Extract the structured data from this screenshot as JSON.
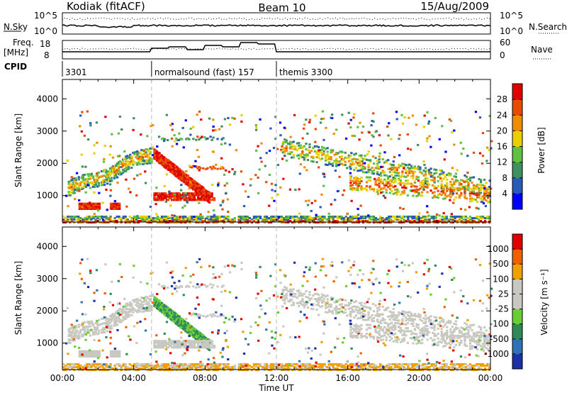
{
  "header": {
    "station": "Kodiak (fitACF)",
    "beam": "Beam 10",
    "date": "15/Aug/2009"
  },
  "params": {
    "nsky_label": "N.Sky",
    "nsearch_label": "N.Search",
    "freq_label_line1": "Freq.",
    "freq_label_line2": "[MHz]",
    "nave_label": "Nave",
    "cpid_label": "CPID",
    "noise_left_ticks": [
      "10^5",
      "10^0"
    ],
    "noise_right_ticks": [
      "10^5",
      "10^0"
    ],
    "freq_left_ticks": [
      "18",
      "8"
    ],
    "freq_right_ticks": [
      "60",
      "0"
    ]
  },
  "cpid_segments": [
    {
      "label": "3301",
      "start": 0.0,
      "end": 5.0
    },
    {
      "label": "normalsound (fast) 157",
      "start": 5.0,
      "end": 12.0
    },
    {
      "label": "themis 3300",
      "start": 12.0,
      "end": 24.0
    }
  ],
  "chart_data": [
    {
      "type": "heatmap",
      "panel": "power",
      "ylabel": "Slant Range [km]",
      "xlabel": "",
      "xlim": [
        0,
        24
      ],
      "ylim": [
        180,
        4600
      ],
      "y_ticks": [
        "1000",
        "2000",
        "3000",
        "4000"
      ],
      "colorbar_label": "Power [dB]",
      "colorbar_ticks": [
        "4",
        "8",
        "12",
        "16",
        "20",
        "24",
        "28"
      ],
      "colorbar_colors": [
        "#0000ff",
        "#2a5ab8",
        "#3f8f5f",
        "#60c040",
        "#e8d000",
        "#f08c00",
        "#e84a00",
        "#e00000"
      ]
    },
    {
      "type": "heatmap",
      "panel": "velocity",
      "ylabel": "Slant Range [km]",
      "xlabel": "Time UT",
      "xlim": [
        0,
        24
      ],
      "ylim": [
        180,
        4600
      ],
      "x_ticks": [
        "00:00",
        "04:00",
        "08:00",
        "12:00",
        "16:00",
        "20:00",
        "00:00"
      ],
      "y_ticks": [
        "1000",
        "2000",
        "3000",
        "4000"
      ],
      "colorbar_label": "Velocity [m s⁻¹]",
      "colorbar_ticks": [
        "1000",
        "500",
        "100",
        "25",
        "-25",
        "-100",
        "-500",
        "-1000"
      ],
      "colorbar_colors": [
        "#1c2fa8",
        "#3070b8",
        "#2e8b57",
        "#6acd36",
        "#c8c8c0",
        "#c8c8c0",
        "#f0a000",
        "#f06000",
        "#e00000"
      ]
    }
  ]
}
